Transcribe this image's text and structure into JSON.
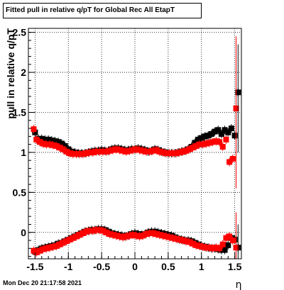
{
  "header": {
    "title": "Fitted pull in relative q/pT for Global Rec All EtapT"
  },
  "footer": {
    "timestamp": "Mon Dec 20 21:17:58 2021"
  },
  "colors": {
    "series_black": "#000000",
    "series_red": "#ff0000",
    "grid": "#000000"
  },
  "chart_data": {
    "type": "scatter",
    "title": "Fitted pull in relative q/pT for Global Rec All EtapT",
    "xlabel": "η",
    "ylabel": "pull in relative q/pT",
    "xlim": [
      -1.6,
      1.6
    ],
    "ylim": [
      -0.33,
      2.55
    ],
    "grid": true,
    "x_ticks": [
      "-1.5",
      "-1",
      "-0.5",
      "0",
      "0.5",
      "1",
      "1.5"
    ],
    "y_ticks": [
      "0",
      "0.5",
      "1",
      "1.5",
      "2",
      "2.5"
    ],
    "x_tick_values": [
      -1.5,
      -1,
      -0.5,
      0,
      0.5,
      1,
      1.5
    ],
    "y_tick_values": [
      0,
      0.5,
      1,
      1.5,
      2,
      2.5
    ],
    "series": [
      {
        "marker": "square",
        "x": [
          -1.5,
          -1.45,
          -1.4,
          -1.35,
          -1.3,
          -1.25,
          -1.2,
          -1.15,
          -1.1,
          -1.05,
          -1.0,
          -0.95,
          -0.9,
          -0.85,
          -0.8,
          -0.75,
          -0.7,
          -0.65,
          -0.6,
          -0.55,
          -0.5,
          -0.45,
          -0.4,
          -0.35,
          -0.3,
          -0.25,
          -0.2,
          -0.15,
          -0.1,
          -0.05,
          0.0,
          0.05,
          0.1,
          0.15,
          0.2,
          0.25,
          0.3,
          0.35,
          0.4,
          0.45,
          0.5,
          0.55,
          0.6,
          0.65,
          0.7,
          0.75,
          0.8,
          0.85,
          0.9,
          0.95,
          1.0,
          1.05,
          1.1,
          1.15,
          1.2,
          1.25,
          1.3,
          1.35,
          1.4,
          1.45,
          1.5,
          1.55
        ],
        "y": [
          1.25,
          1.17,
          1.17,
          1.16,
          1.16,
          1.15,
          1.14,
          1.13,
          1.11,
          1.08,
          1.04,
          1.01,
          1.0,
          0.99,
          0.99,
          0.99,
          1.0,
          1.01,
          1.02,
          1.02,
          1.03,
          1.02,
          1.02,
          1.04,
          1.05,
          1.05,
          1.04,
          1.03,
          1.03,
          1.04,
          1.04,
          1.05,
          1.04,
          1.03,
          1.01,
          1.02,
          1.04,
          1.03,
          1.01,
          1.0,
          0.99,
          0.99,
          0.99,
          1.0,
          1.01,
          1.02,
          1.04,
          1.07,
          1.12,
          1.16,
          1.18,
          1.2,
          1.21,
          1.23,
          1.26,
          1.28,
          1.23,
          1.28,
          1.25,
          1.3,
          1.21,
          1.75
        ]
      },
      {
        "marker": "square",
        "x": [
          -1.5,
          -1.45,
          -1.4,
          -1.35,
          -1.3,
          -1.25,
          -1.2,
          -1.15,
          -1.1,
          -1.05,
          -1.0,
          -0.95,
          -0.9,
          -0.85,
          -0.8,
          -0.75,
          -0.7,
          -0.65,
          -0.6,
          -0.55,
          -0.5,
          -0.45,
          -0.4,
          -0.35,
          -0.3,
          -0.25,
          -0.2,
          -0.15,
          -0.1,
          -0.05,
          0.0,
          0.05,
          0.1,
          0.15,
          0.2,
          0.25,
          0.3,
          0.35,
          0.4,
          0.45,
          0.5,
          0.55,
          0.6,
          0.65,
          0.7,
          0.75,
          0.8,
          0.85,
          0.9,
          0.95,
          1.0,
          1.05,
          1.1,
          1.15,
          1.2,
          1.25,
          1.3,
          1.35,
          1.4,
          1.45,
          1.5,
          1.55
        ],
        "y": [
          -0.24,
          -0.22,
          -0.2,
          -0.19,
          -0.18,
          -0.17,
          -0.16,
          -0.14,
          -0.13,
          -0.11,
          -0.09,
          -0.07,
          -0.05,
          -0.03,
          -0.01,
          0.01,
          0.02,
          0.03,
          0.03,
          0.04,
          0.04,
          0.03,
          0.01,
          -0.01,
          -0.02,
          -0.03,
          -0.04,
          -0.05,
          -0.04,
          -0.02,
          -0.01,
          -0.02,
          -0.03,
          -0.02,
          0.0,
          0.01,
          0.01,
          0.0,
          -0.01,
          -0.02,
          -0.03,
          -0.04,
          -0.06,
          -0.08,
          -0.09,
          -0.1,
          -0.1,
          -0.11,
          -0.13,
          -0.15,
          -0.17,
          -0.18,
          -0.19,
          -0.2,
          -0.2,
          -0.21,
          -0.22,
          -0.22,
          -0.16,
          -0.07,
          -0.09,
          -0.19
        ]
      },
      {
        "marker": "square",
        "x": [
          -1.52,
          -1.48,
          -1.43,
          -1.38,
          -1.33,
          -1.28,
          -1.23,
          -1.18,
          -1.13,
          -1.08,
          -1.03,
          -0.98,
          -0.93,
          -0.88,
          -0.83,
          -0.78,
          -0.73,
          -0.68,
          -0.63,
          -0.58,
          -0.53,
          -0.48,
          -0.43,
          -0.38,
          -0.33,
          -0.28,
          -0.23,
          -0.18,
          -0.13,
          -0.08,
          -0.03,
          0.02,
          0.07,
          0.12,
          0.17,
          0.22,
          0.27,
          0.32,
          0.37,
          0.42,
          0.47,
          0.52,
          0.57,
          0.62,
          0.67,
          0.72,
          0.77,
          0.82,
          0.87,
          0.92,
          0.97,
          1.02,
          1.07,
          1.12,
          1.17,
          1.22,
          1.27,
          1.32,
          1.37,
          1.42,
          1.47,
          1.52
        ],
        "y": [
          1.29,
          1.16,
          1.13,
          1.11,
          1.1,
          1.1,
          1.09,
          1.08,
          1.06,
          1.04,
          1.01,
          0.99,
          0.98,
          0.98,
          0.98,
          0.98,
          0.99,
          1.0,
          1.0,
          1.01,
          1.01,
          1.01,
          1.01,
          1.02,
          1.03,
          1.04,
          1.03,
          1.02,
          1.01,
          1.02,
          1.03,
          1.04,
          1.03,
          1.02,
          1.01,
          1.01,
          1.02,
          1.03,
          1.01,
          1.0,
          0.99,
          0.99,
          0.99,
          0.99,
          1.0,
          1.01,
          1.02,
          1.04,
          1.06,
          1.08,
          1.1,
          1.1,
          1.11,
          1.12,
          1.13,
          1.14,
          1.13,
          1.07,
          1.16,
          0.88,
          0.92,
          1.55
        ]
      },
      {
        "marker": "square",
        "x": [
          -1.52,
          -1.48,
          -1.43,
          -1.38,
          -1.33,
          -1.28,
          -1.23,
          -1.18,
          -1.13,
          -1.08,
          -1.03,
          -0.98,
          -0.93,
          -0.88,
          -0.83,
          -0.78,
          -0.73,
          -0.68,
          -0.63,
          -0.58,
          -0.53,
          -0.48,
          -0.43,
          -0.38,
          -0.33,
          -0.28,
          -0.23,
          -0.18,
          -0.13,
          -0.08,
          -0.03,
          0.02,
          0.07,
          0.12,
          0.17,
          0.22,
          0.27,
          0.32,
          0.37,
          0.42,
          0.47,
          0.52,
          0.57,
          0.62,
          0.67,
          0.72,
          0.77,
          0.82,
          0.87,
          0.92,
          0.97,
          1.02,
          1.07,
          1.12,
          1.17,
          1.22,
          1.27,
          1.32,
          1.37,
          1.42,
          1.47,
          1.52
        ],
        "y": [
          -0.23,
          -0.25,
          -0.23,
          -0.21,
          -0.2,
          -0.19,
          -0.18,
          -0.17,
          -0.15,
          -0.13,
          -0.11,
          -0.09,
          -0.07,
          -0.05,
          -0.03,
          -0.01,
          0.01,
          0.02,
          0.02,
          0.03,
          0.03,
          0.02,
          0.0,
          -0.02,
          -0.03,
          -0.04,
          -0.05,
          -0.06,
          -0.05,
          -0.04,
          -0.03,
          -0.04,
          -0.05,
          -0.04,
          -0.02,
          -0.01,
          -0.01,
          -0.02,
          -0.03,
          -0.04,
          -0.05,
          -0.06,
          -0.07,
          -0.08,
          -0.09,
          -0.1,
          -0.11,
          -0.12,
          -0.14,
          -0.16,
          -0.17,
          -0.18,
          -0.19,
          -0.19,
          -0.2,
          -0.19,
          -0.2,
          -0.15,
          -0.07,
          -0.05,
          -0.1,
          -0.19
        ]
      }
    ]
  }
}
